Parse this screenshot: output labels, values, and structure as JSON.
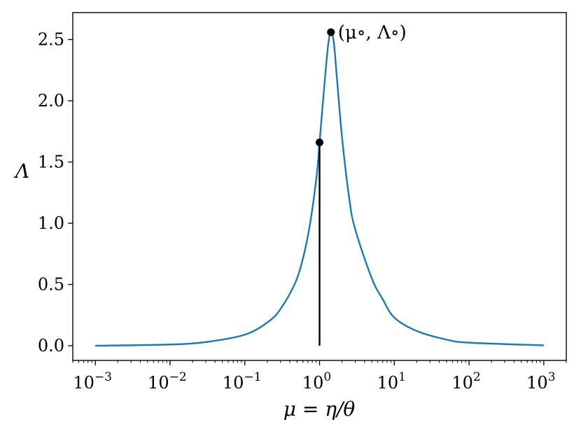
{
  "chart_data": {
    "type": "line",
    "title": "",
    "xlabel": "μ = η/θ",
    "ylabel": "Λ",
    "xscale": "log",
    "xlim": [
      0.0005,
      2000
    ],
    "ylim": [
      -0.12,
      2.72
    ],
    "grid": false,
    "x_ticks": [
      {
        "value": 0.001,
        "base": "10",
        "exp": "−3"
      },
      {
        "value": 0.01,
        "base": "10",
        "exp": "−2"
      },
      {
        "value": 0.1,
        "base": "10",
        "exp": "−1"
      },
      {
        "value": 1,
        "base": "10",
        "exp": "0"
      },
      {
        "value": 10,
        "base": "10",
        "exp": "1"
      },
      {
        "value": 100,
        "base": "10",
        "exp": "2"
      },
      {
        "value": 1000,
        "base": "10",
        "exp": "3"
      }
    ],
    "y_ticks": [
      {
        "value": 0.0,
        "label": "0.0"
      },
      {
        "value": 0.5,
        "label": "0.5"
      },
      {
        "value": 1.0,
        "label": "1.0"
      },
      {
        "value": 1.5,
        "label": "1.5"
      },
      {
        "value": 2.0,
        "label": "2.0"
      },
      {
        "value": 2.5,
        "label": "2.5"
      }
    ],
    "series": [
      {
        "color": "#1f77b4",
        "x": [
          0.001,
          0.01,
          0.03,
          0.1,
          0.2,
          0.3,
          0.5,
          0.7,
          0.9,
          1.0,
          1.15,
          1.3,
          1.42,
          1.55,
          1.7,
          2.0,
          2.5,
          3.0,
          5.0,
          7.0,
          10,
          20,
          50,
          100,
          1000
        ],
        "y": [
          0.0,
          0.01,
          0.03,
          0.09,
          0.19,
          0.3,
          0.55,
          0.9,
          1.35,
          1.66,
          2.1,
          2.45,
          2.56,
          2.48,
          2.2,
          1.7,
          1.2,
          0.95,
          0.55,
          0.38,
          0.23,
          0.12,
          0.05,
          0.025,
          0.003
        ]
      }
    ],
    "vertical_line": {
      "x": 1.0,
      "y_from": 0.0,
      "y_to": 1.66,
      "color": "#000000"
    },
    "points": [
      {
        "x": 1.0,
        "y": 1.66,
        "label": ""
      },
      {
        "x": 1.42,
        "y": 2.56,
        "label": "(μ∘, Λ∘)"
      }
    ]
  }
}
